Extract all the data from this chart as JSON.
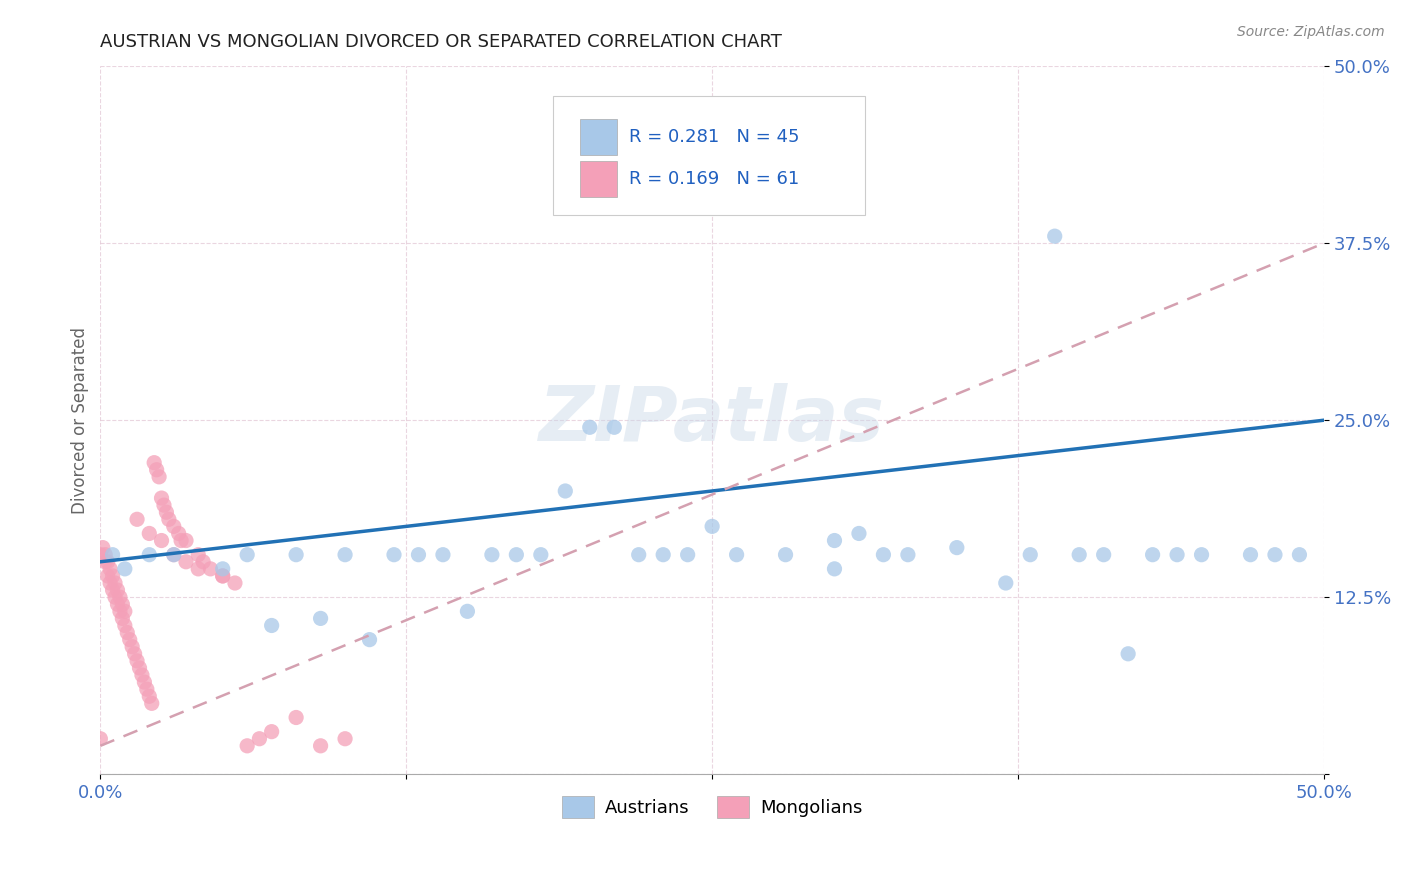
{
  "title": "AUSTRIAN VS MONGOLIAN DIVORCED OR SEPARATED CORRELATION CHART",
  "source": "Source: ZipAtlas.com",
  "ylabel": "Divorced or Separated",
  "watermark": "ZIPatlas",
  "xlim": [
    0.0,
    0.5
  ],
  "ylim": [
    0.0,
    0.5
  ],
  "xticks": [
    0.0,
    0.125,
    0.25,
    0.375,
    0.5
  ],
  "yticks": [
    0.0,
    0.125,
    0.25,
    0.375,
    0.5
  ],
  "xtick_labels": [
    "0.0%",
    "",
    "",
    "",
    "50.0%"
  ],
  "ytick_labels": [
    "",
    "12.5%",
    "25.0%",
    "37.5%",
    "50.0%"
  ],
  "blue_R": 0.281,
  "blue_N": 45,
  "pink_R": 0.169,
  "pink_N": 61,
  "blue_color": "#a8c8e8",
  "pink_color": "#f4a0b8",
  "blue_line_color": "#2171b5",
  "pink_line_color": "#d4a0b0",
  "background_color": "#ffffff",
  "legend_label_austrians": "Austrians",
  "legend_label_mongolians": "Mongolians",
  "blue_scatter_x": [
    0.005,
    0.01,
    0.02,
    0.03,
    0.05,
    0.06,
    0.07,
    0.08,
    0.09,
    0.1,
    0.11,
    0.12,
    0.13,
    0.14,
    0.15,
    0.16,
    0.17,
    0.18,
    0.19,
    0.2,
    0.21,
    0.22,
    0.23,
    0.24,
    0.25,
    0.26,
    0.28,
    0.3,
    0.31,
    0.32,
    0.33,
    0.35,
    0.37,
    0.38,
    0.39,
    0.4,
    0.41,
    0.42,
    0.43,
    0.44,
    0.45,
    0.47,
    0.48,
    0.49,
    0.3
  ],
  "blue_scatter_y": [
    0.155,
    0.145,
    0.155,
    0.155,
    0.145,
    0.155,
    0.105,
    0.155,
    0.11,
    0.155,
    0.095,
    0.155,
    0.155,
    0.155,
    0.115,
    0.155,
    0.155,
    0.155,
    0.2,
    0.245,
    0.245,
    0.155,
    0.155,
    0.155,
    0.175,
    0.155,
    0.155,
    0.165,
    0.17,
    0.155,
    0.155,
    0.16,
    0.135,
    0.155,
    0.38,
    0.155,
    0.155,
    0.085,
    0.155,
    0.155,
    0.155,
    0.155,
    0.155,
    0.155,
    0.145
  ],
  "pink_scatter_x": [
    0.0,
    0.002,
    0.003,
    0.004,
    0.005,
    0.006,
    0.007,
    0.008,
    0.009,
    0.01,
    0.011,
    0.012,
    0.013,
    0.014,
    0.015,
    0.016,
    0.017,
    0.018,
    0.019,
    0.02,
    0.021,
    0.022,
    0.023,
    0.024,
    0.025,
    0.026,
    0.027,
    0.028,
    0.03,
    0.032,
    0.033,
    0.035,
    0.04,
    0.042,
    0.045,
    0.05,
    0.055,
    0.06,
    0.065,
    0.07,
    0.08,
    0.09,
    0.1,
    0.001,
    0.002,
    0.003,
    0.004,
    0.005,
    0.006,
    0.007,
    0.008,
    0.009,
    0.01,
    0.015,
    0.02,
    0.025,
    0.03,
    0.035,
    0.04,
    0.05,
    0.0
  ],
  "pink_scatter_y": [
    0.155,
    0.15,
    0.14,
    0.135,
    0.13,
    0.125,
    0.12,
    0.115,
    0.11,
    0.105,
    0.1,
    0.095,
    0.09,
    0.085,
    0.08,
    0.075,
    0.07,
    0.065,
    0.06,
    0.055,
    0.05,
    0.22,
    0.215,
    0.21,
    0.195,
    0.19,
    0.185,
    0.18,
    0.175,
    0.17,
    0.165,
    0.165,
    0.155,
    0.15,
    0.145,
    0.14,
    0.135,
    0.02,
    0.025,
    0.03,
    0.04,
    0.02,
    0.025,
    0.16,
    0.155,
    0.15,
    0.145,
    0.14,
    0.135,
    0.13,
    0.125,
    0.12,
    0.115,
    0.18,
    0.17,
    0.165,
    0.155,
    0.15,
    0.145,
    0.14,
    0.025
  ]
}
